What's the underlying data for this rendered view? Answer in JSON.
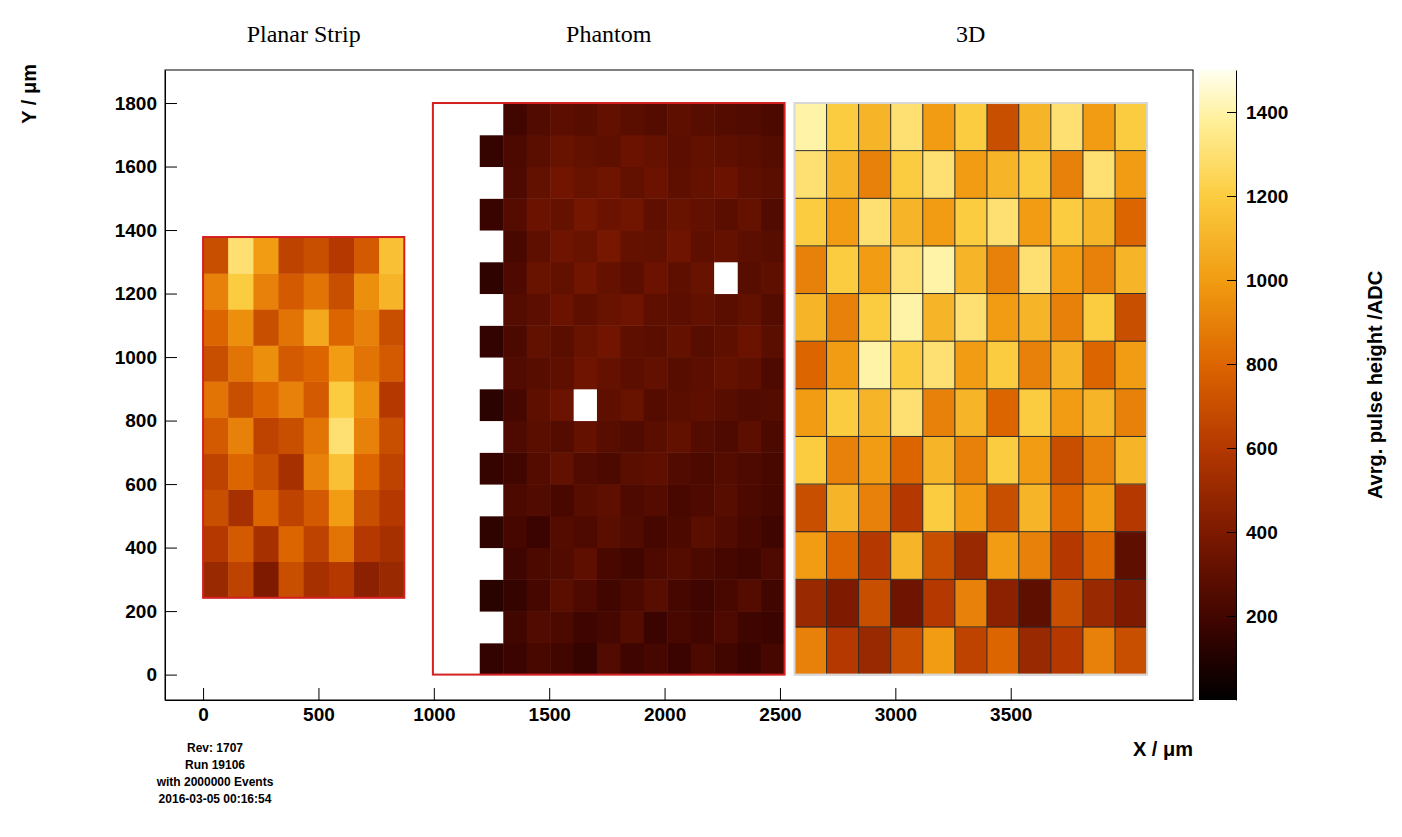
{
  "chart_data": {
    "type": "heatmap",
    "x_label": "X / μm",
    "y_label": "Y / μm",
    "xlim": [
      -165,
      4290
    ],
    "xticks": [
      0,
      500,
      1000,
      1500,
      2000,
      2500,
      3000,
      3500
    ],
    "ylim": [
      -80,
      1904
    ],
    "yticks": [
      0,
      200,
      400,
      600,
      800,
      1000,
      1200,
      1400,
      1600,
      1800
    ],
    "annotations": [
      "Rev: 1707",
      "Run 19106",
      "with 2000000 Events",
      "2016-03-05 00:16:54"
    ],
    "colorbar": {
      "label": "Avrg. pulse height /ADC",
      "lim": [
        0,
        1500
      ],
      "ticks": [
        200,
        400,
        600,
        800,
        1000,
        1200,
        1400
      ]
    },
    "panels": [
      {
        "title": "Planar Strip",
        "color": "#d42020",
        "grid": false,
        "x_edges": [
          0,
          109,
          218,
          327,
          436,
          545,
          654,
          763,
          872
        ],
        "y_edges": [
          242,
          356,
          469,
          583,
          696,
          810,
          924,
          1037,
          1151,
          1264,
          1378
        ],
        "values": [
          [
            500,
            650,
            400,
            700,
            550,
            600,
            450,
            500
          ],
          [
            600,
            750,
            550,
            800,
            650,
            850,
            600,
            550
          ],
          [
            700,
            550,
            800,
            650,
            750,
            1000,
            700,
            600
          ],
          [
            650,
            800,
            700,
            550,
            900,
            1150,
            800,
            650
          ],
          [
            750,
            900,
            650,
            700,
            850,
            1300,
            900,
            700
          ],
          [
            850,
            700,
            800,
            900,
            750,
            1200,
            950,
            600
          ],
          [
            700,
            850,
            950,
            750,
            800,
            1000,
            850,
            750
          ],
          [
            800,
            950,
            700,
            850,
            1050,
            800,
            900,
            700
          ],
          [
            900,
            1200,
            900,
            750,
            850,
            700,
            950,
            1100
          ],
          [
            700,
            1300,
            1000,
            650,
            700,
            600,
            750,
            1150
          ]
        ]
      },
      {
        "title": "Phantom",
        "color": "#d42020",
        "grid": false,
        "x_edges": [
          996,
          1098,
          1199,
          1301,
          1402,
          1504,
          1606,
          1707,
          1809,
          1910,
          2012,
          2114,
          2215,
          2317,
          2418,
          2520
        ],
        "y_edges": [
          0,
          100,
          200,
          300,
          400,
          500,
          600,
          700,
          800,
          900,
          1000,
          1100,
          1200,
          1300,
          1400,
          1500,
          1600,
          1700,
          1800
        ],
        "values": [
          [
            null,
            null,
            150,
            180,
            220,
            200,
            160,
            250,
            190,
            210,
            180,
            230,
            200,
            170,
            210
          ],
          [
            null,
            null,
            null,
            200,
            250,
            230,
            190,
            210,
            260,
            180,
            220,
            200,
            240,
            190,
            180
          ],
          [
            null,
            null,
            120,
            160,
            210,
            280,
            240,
            200,
            230,
            270,
            210,
            190,
            220,
            260,
            200
          ],
          [
            null,
            null,
            null,
            190,
            230,
            250,
            300,
            220,
            200,
            240,
            260,
            230,
            210,
            200,
            240
          ],
          [
            null,
            null,
            140,
            210,
            180,
            260,
            240,
            280,
            250,
            210,
            230,
            280,
            250,
            220,
            190
          ],
          [
            null,
            null,
            null,
            230,
            250,
            220,
            270,
            300,
            240,
            260,
            220,
            240,
            270,
            230,
            210
          ],
          [
            null,
            null,
            160,
            200,
            260,
            310,
            250,
            230,
            280,
            300,
            250,
            230,
            260,
            240,
            220
          ],
          [
            null,
            null,
            null,
            240,
            280,
            260,
            320,
            270,
            250,
            280,
            310,
            260,
            240,
            290,
            230
          ],
          [
            null,
            null,
            130,
            210,
            300,
            340,
            null,
            300,
            330,
            260,
            280,
            300,
            270,
            250,
            260
          ],
          [
            null,
            null,
            null,
            250,
            270,
            300,
            350,
            320,
            290,
            310,
            270,
            290,
            320,
            300,
            240
          ],
          [
            null,
            null,
            150,
            230,
            310,
            280,
            330,
            360,
            300,
            280,
            320,
            270,
            300,
            340,
            280
          ],
          [
            null,
            null,
            null,
            260,
            290,
            340,
            300,
            330,
            350,
            300,
            290,
            310,
            280,
            310,
            260
          ],
          [
            null,
            null,
            140,
            240,
            330,
            310,
            360,
            320,
            290,
            340,
            300,
            330,
            null,
            270,
            300
          ],
          [
            null,
            null,
            null,
            220,
            300,
            350,
            330,
            380,
            320,
            310,
            350,
            300,
            320,
            290,
            270
          ],
          [
            null,
            null,
            170,
            260,
            340,
            320,
            370,
            340,
            360,
            300,
            330,
            310,
            280,
            320,
            250
          ],
          [
            null,
            null,
            null,
            240,
            310,
            360,
            330,
            350,
            310,
            340,
            300,
            320,
            340,
            300,
            280
          ],
          [
            null,
            null,
            160,
            230,
            280,
            330,
            310,
            300,
            340,
            320,
            290,
            310,
            300,
            280,
            260
          ],
          [
            null,
            null,
            null,
            200,
            250,
            290,
            270,
            310,
            280,
            260,
            300,
            270,
            260,
            250,
            230
          ]
        ]
      },
      {
        "title": "3D",
        "color": "#d8d8d8",
        "grid": true,
        "x_edges": [
          2563,
          2702,
          2841,
          2980,
          3119,
          3258,
          3397,
          3535,
          3674,
          3813,
          3952,
          4091
        ],
        "y_edges": [
          0,
          150,
          300,
          450,
          600,
          750,
          900,
          1050,
          1200,
          1350,
          1500,
          1650,
          1800
        ],
        "values": [
          [
            900,
            600,
            500,
            700,
            1000,
            650,
            800,
            500,
            600,
            900,
            700
          ],
          [
            500,
            400,
            700,
            350,
            600,
            900,
            450,
            300,
            700,
            500,
            400
          ],
          [
            1000,
            800,
            600,
            1100,
            700,
            500,
            1000,
            900,
            600,
            800,
            300
          ],
          [
            700,
            1100,
            900,
            600,
            1200,
            1000,
            700,
            1100,
            800,
            1000,
            600
          ],
          [
            1200,
            900,
            1000,
            800,
            1100,
            900,
            1200,
            1000,
            700,
            900,
            1100
          ],
          [
            1000,
            1200,
            1100,
            1300,
            900,
            1100,
            800,
            1200,
            1000,
            1100,
            900
          ],
          [
            800,
            1000,
            1400,
            1200,
            1300,
            1000,
            1200,
            900,
            1100,
            800,
            1000
          ],
          [
            1100,
            900,
            1200,
            1400,
            1100,
            1300,
            1000,
            1100,
            900,
            1200,
            700
          ],
          [
            900,
            1200,
            1000,
            1300,
            1400,
            1100,
            900,
            1300,
            1000,
            900,
            1100
          ],
          [
            1200,
            1000,
            1300,
            1100,
            1000,
            1200,
            1300,
            1000,
            1200,
            1100,
            800
          ],
          [
            1300,
            1100,
            900,
            1200,
            1300,
            1000,
            1100,
            1200,
            900,
            1300,
            1000
          ],
          [
            1400,
            1200,
            1100,
            1300,
            1000,
            1200,
            700,
            1100,
            1300,
            1000,
            1200
          ]
        ]
      }
    ]
  }
}
